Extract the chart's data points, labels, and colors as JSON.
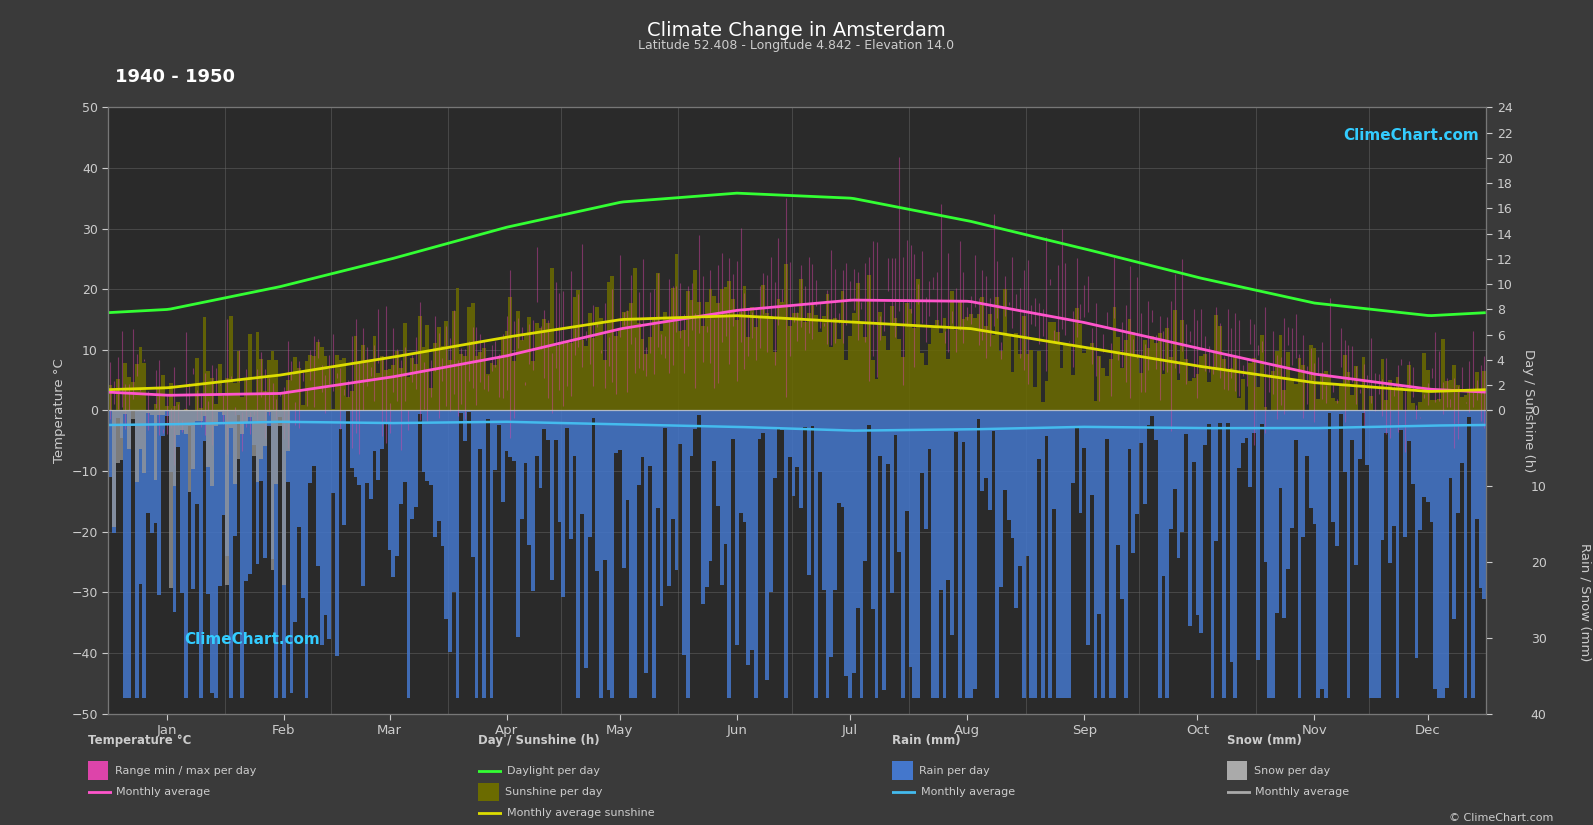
{
  "title": "Climate Change in Amsterdam",
  "subtitle": "Latitude 52.408 - Longitude 4.842 - Elevation 14.0",
  "period": "1940 - 1950",
  "bg_color": "#3a3a3a",
  "plot_bg": "#2a2a2a",
  "text_color": "#cccccc",
  "grid_color": "#555555",
  "months": [
    "Jan",
    "Feb",
    "Mar",
    "Apr",
    "May",
    "Jun",
    "Jul",
    "Aug",
    "Sep",
    "Oct",
    "Nov",
    "Dec"
  ],
  "temp_ylim": [
    -50,
    50
  ],
  "temp_avg": [
    2.5,
    2.8,
    5.5,
    9.0,
    13.5,
    16.5,
    18.2,
    18.0,
    14.5,
    10.2,
    6.0,
    3.5
  ],
  "temp_max_avg": [
    5.5,
    6.0,
    9.5,
    13.5,
    18.0,
    20.5,
    22.5,
    22.5,
    18.5,
    13.5,
    8.5,
    5.5
  ],
  "temp_min_avg": [
    -0.5,
    -0.2,
    1.5,
    4.5,
    8.5,
    11.5,
    13.0,
    13.0,
    10.0,
    6.5,
    3.0,
    1.0
  ],
  "daylight_h": [
    8.0,
    9.8,
    12.0,
    14.5,
    16.5,
    17.2,
    16.8,
    15.0,
    12.8,
    10.5,
    8.5,
    7.5
  ],
  "sunshine_h": [
    1.8,
    2.8,
    4.2,
    5.8,
    7.2,
    7.5,
    7.0,
    6.5,
    5.0,
    3.5,
    2.2,
    1.5
  ],
  "rain_mm": [
    55,
    45,
    50,
    45,
    55,
    65,
    80,
    75,
    65,
    70,
    70,
    60
  ],
  "snow_mm": [
    15,
    12,
    5,
    1,
    0,
    0,
    0,
    0,
    0,
    1,
    5,
    12
  ],
  "sun_scale": 2.0833,
  "rain_scale": 1.25,
  "rain_noise_scale": 0.4,
  "sun_noise_scale": 2.0
}
